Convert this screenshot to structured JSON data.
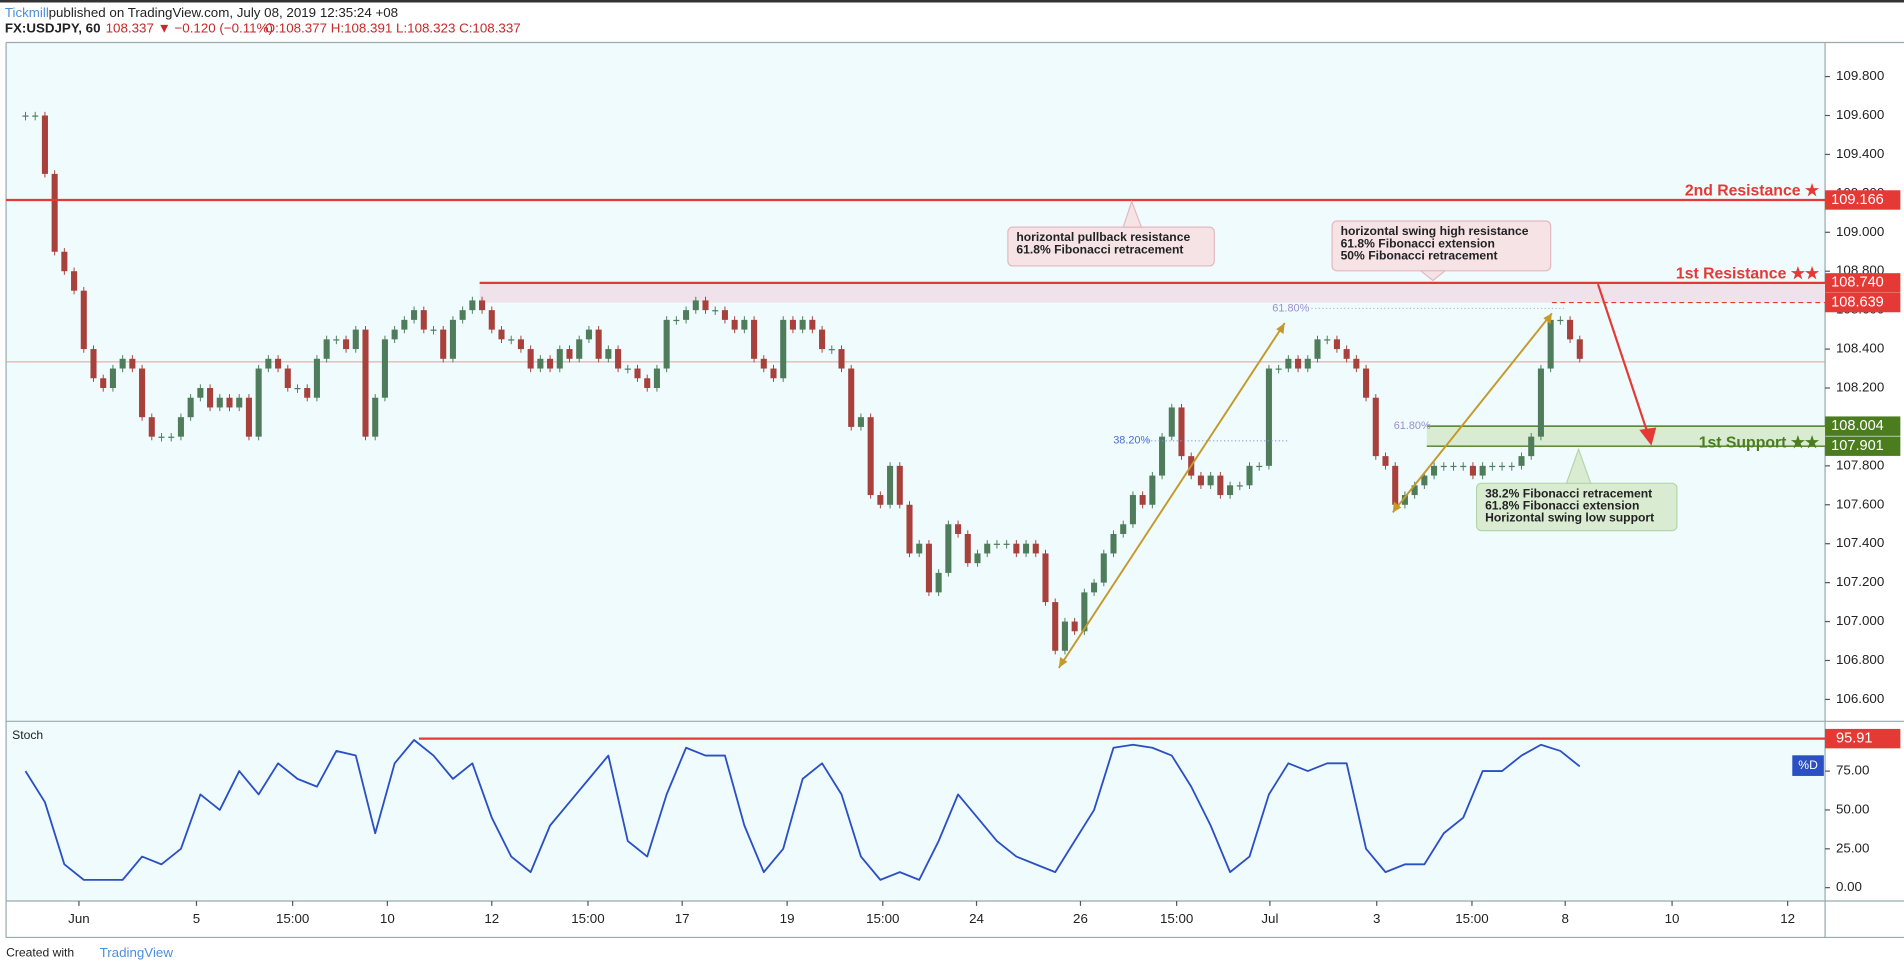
{
  "header": {
    "author": "Tickmill",
    "published": "published on TradingView.com, July 08, 2019 12:35:24 +08",
    "symbol": "FX:USDJPY, 60",
    "last": "108.337 ▼ −0.120 (−0.11%)",
    "ohlc": "O:108.377 H:108.391 L:108.323 C:108.337"
  },
  "footer": {
    "created": "Created with",
    "brand": "TradingView"
  },
  "chart_data": [
    {
      "type": "candlestick",
      "up_color": "#4f7d5c",
      "down_color": "#a8413c",
      "xlim": [
        -2,
        185.25
      ],
      "xticks": [
        {
          "value": 5.5,
          "label": "Jun"
        },
        {
          "value": 17.6,
          "label": "5"
        },
        {
          "value": 27.5,
          "label": "15:00"
        },
        {
          "value": 37.25,
          "label": "10"
        },
        {
          "value": 48,
          "label": "12"
        },
        {
          "value": 57.9,
          "label": "15:00"
        },
        {
          "value": 67.6,
          "label": "17"
        },
        {
          "value": 78.4,
          "label": "19"
        },
        {
          "value": 88.25,
          "label": "15:00"
        },
        {
          "value": 97.9,
          "label": "24"
        },
        {
          "value": 108.6,
          "label": "26"
        },
        {
          "value": 118.5,
          "label": "15:00"
        },
        {
          "value": 128.1,
          "label": "Jul"
        },
        {
          "value": 139.1,
          "label": "3"
        },
        {
          "value": 148.9,
          "label": "15:00"
        },
        {
          "value": 158.5,
          "label": "8"
        },
        {
          "value": 169.5,
          "label": "10"
        },
        {
          "value": 181.4,
          "label": "12"
        }
      ],
      "ylim": [
        106.5,
        109.975
      ],
      "yticks": [
        {
          "value": 109.8,
          "label": "109.800"
        },
        {
          "value": 109.6,
          "label": "109.600"
        },
        {
          "value": 109.4,
          "label": "109.400"
        },
        {
          "value": 109.2,
          "label": "109.200"
        },
        {
          "value": 109,
          "label": "109.000"
        },
        {
          "value": 108.8,
          "label": "108.800"
        },
        {
          "value": 108.6,
          "label": "108.600"
        },
        {
          "value": 108.4,
          "label": "108.400"
        },
        {
          "value": 108.2,
          "label": "108.200"
        },
        {
          "value": 108,
          "label": "108.000"
        },
        {
          "value": 107.8,
          "label": "107.800"
        },
        {
          "value": 107.6,
          "label": "107.600"
        },
        {
          "value": 107.4,
          "label": "107.400"
        },
        {
          "value": 107.2,
          "label": "107.200"
        },
        {
          "value": 107,
          "label": "107.000"
        },
        {
          "value": 106.8,
          "label": "106.800"
        },
        {
          "value": 106.6,
          "label": "106.600"
        }
      ],
      "values": [
        109.6,
        109.6,
        109.3,
        108.9,
        108.8,
        108.7,
        108.4,
        108.25,
        108.2,
        108.3,
        108.35,
        108.3,
        108.05,
        107.95,
        107.95,
        107.95,
        108.05,
        108.15,
        108.2,
        108.1,
        108.15,
        108.1,
        108.15,
        107.95,
        108.3,
        108.35,
        108.3,
        108.2,
        108.2,
        108.15,
        108.35,
        108.45,
        108.45,
        108.4,
        108.5,
        107.95,
        108.15,
        108.45,
        108.5,
        108.55,
        108.6,
        108.5,
        108.5,
        108.35,
        108.55,
        108.6,
        108.65,
        108.6,
        108.5,
        108.45,
        108.45,
        108.4,
        108.3,
        108.35,
        108.3,
        108.4,
        108.35,
        108.45,
        108.5,
        108.35,
        108.4,
        108.3,
        108.3,
        108.25,
        108.2,
        108.3,
        108.55,
        108.55,
        108.6,
        108.65,
        108.6,
        108.6,
        108.55,
        108.5,
        108.55,
        108.35,
        108.3,
        108.25,
        108.55,
        108.5,
        108.55,
        108.5,
        108.4,
        108.4,
        108.3,
        108,
        108.05,
        107.65,
        107.6,
        107.8,
        107.6,
        107.35,
        107.4,
        107.15,
        107.25,
        107.5,
        107.45,
        107.3,
        107.35,
        107.4,
        107.4,
        107.4,
        107.35,
        107.4,
        107.35,
        107.1,
        106.85,
        107,
        106.95,
        107.15,
        107.2,
        107.35,
        107.45,
        107.5,
        107.65,
        107.6,
        107.75,
        107.95,
        108.1,
        107.85,
        107.75,
        107.7,
        107.75,
        107.65,
        107.7,
        107.7,
        107.8,
        107.8,
        108.3,
        108.3,
        108.35,
        108.3,
        108.35,
        108.45,
        108.45,
        108.4,
        108.35,
        108.3,
        108.15,
        107.85,
        107.8,
        107.6,
        107.65,
        107.7,
        107.75,
        107.8,
        107.8,
        107.8,
        107.8,
        107.75,
        107.8,
        107.8,
        107.8,
        107.8,
        107.85,
        107.95,
        108.3,
        108.55,
        108.55,
        108.45,
        108.35
      ],
      "levels": [
        {
          "value": 109.166,
          "name": "2nd Resistance ★",
          "color": "#e53935",
          "style": "solid"
        },
        {
          "value": 108.74,
          "label": "108.740",
          "name": "1st Resistance ★★",
          "color": "#e53935",
          "style": "solid"
        },
        {
          "value": 108.639,
          "color": "#e53935",
          "style": "dashed"
        }
      ],
      "support_zone": {
        "high": 108.004,
        "low": 107.901,
        "name": "1st Support ★★",
        "color": "#4b7d1f"
      },
      "fib_labels": [
        "61.80%",
        "38.20%",
        "61.80%"
      ],
      "notes": [
        {
          "lines": [
            "horizontal pullback resistance",
            "61.8% Fibonacci retracement"
          ]
        },
        {
          "lines": [
            "horizontal swing high resistance",
            "61.8% Fibonacci extension",
            "50% Fibonacci retracement"
          ]
        },
        {
          "lines": [
            "38.2% Fibonacci retracement",
            "61.8% Fibonacci extension",
            "Horizontal swing low support"
          ]
        }
      ]
    },
    {
      "type": "line",
      "name": "Stoch",
      "legend": "%D",
      "color": "#2b4fc4",
      "xlim": [
        -1,
        92.625
      ],
      "ylim": [
        -8.6,
        105.5
      ],
      "yticks": [
        {
          "value": 75,
          "label": "75.00"
        },
        {
          "value": 50,
          "label": "50.00"
        },
        {
          "value": 25,
          "label": "25.00"
        },
        {
          "value": 0,
          "label": "0.00"
        }
      ],
      "values": [
        75,
        55,
        15,
        5,
        5,
        5,
        20,
        15,
        25,
        60,
        50,
        75,
        60,
        80,
        70,
        65,
        88,
        85,
        35,
        80,
        95,
        85,
        70,
        80,
        45,
        20,
        10,
        40,
        55,
        70,
        85,
        30,
        20,
        60,
        90,
        85,
        85,
        40,
        10,
        25,
        70,
        80,
        60,
        20,
        5,
        10,
        5,
        30,
        60,
        45,
        30,
        20,
        15,
        10,
        30,
        50,
        90,
        92,
        90,
        85,
        65,
        40,
        10,
        20,
        60,
        80,
        75,
        80,
        80,
        25,
        10,
        15,
        15,
        35,
        45,
        75,
        75,
        85,
        92,
        88,
        78
      ],
      "levels": [
        {
          "value": 95.91,
          "color": "#e53935"
        }
      ]
    }
  ]
}
